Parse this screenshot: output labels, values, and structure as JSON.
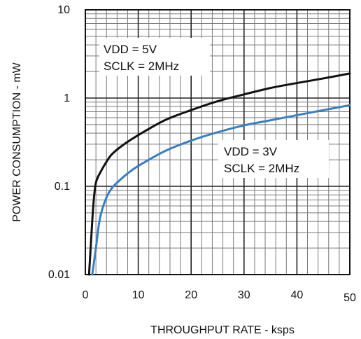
{
  "chart_data": {
    "type": "line",
    "xlabel": "THROUGHPUT RATE - ksps",
    "ylabel": "POWER CONSUMPTION - mW",
    "xlim": [
      0,
      50
    ],
    "ylim": [
      0.01,
      10
    ],
    "y_scale": "log",
    "grid": true,
    "x_ticks": [
      {
        "value": 0,
        "label": "0"
      },
      {
        "value": 10,
        "label": "10"
      },
      {
        "value": 20,
        "label": "20"
      },
      {
        "value": 30,
        "label": "30"
      },
      {
        "value": 40,
        "label": "40"
      },
      {
        "value": 50,
        "label": "50"
      }
    ],
    "y_ticks": [
      {
        "value": 10,
        "label": "10"
      },
      {
        "value": 1,
        "label": "1"
      },
      {
        "value": 0.1,
        "label": "0.1"
      },
      {
        "value": 0.01,
        "label": "0.01"
      }
    ],
    "series": [
      {
        "color": "#111111",
        "points": [
          [
            0.7,
            0.01
          ],
          [
            1.0,
            0.02
          ],
          [
            1.5,
            0.06
          ],
          [
            2.0,
            0.11
          ],
          [
            3.0,
            0.15
          ],
          [
            4.0,
            0.19
          ],
          [
            5.0,
            0.23
          ],
          [
            7.0,
            0.29
          ],
          [
            10.0,
            0.38
          ],
          [
            15.0,
            0.56
          ],
          [
            20.0,
            0.73
          ],
          [
            25.0,
            0.92
          ],
          [
            30.0,
            1.1
          ],
          [
            35.0,
            1.3
          ],
          [
            40.0,
            1.48
          ],
          [
            45.0,
            1.67
          ],
          [
            50.0,
            1.9
          ]
        ]
      },
      {
        "color": "#3a7fc1",
        "points": [
          [
            1.3,
            0.01
          ],
          [
            2.0,
            0.02
          ],
          [
            2.5,
            0.035
          ],
          [
            3.0,
            0.05
          ],
          [
            4.0,
            0.075
          ],
          [
            5.0,
            0.095
          ],
          [
            6.0,
            0.11
          ],
          [
            8.0,
            0.14
          ],
          [
            10.0,
            0.17
          ],
          [
            15.0,
            0.25
          ],
          [
            20.0,
            0.33
          ],
          [
            25.0,
            0.41
          ],
          [
            30.0,
            0.49
          ],
          [
            35.0,
            0.56
          ],
          [
            40.0,
            0.64
          ],
          [
            45.0,
            0.73
          ],
          [
            50.0,
            0.83
          ]
        ]
      }
    ],
    "annotations": [
      {
        "lines": [
          "VDD = 5V",
          "SCLK = 2MHz"
        ]
      },
      {
        "lines": [
          "VDD = 3V",
          "SCLK = 2MHz"
        ]
      }
    ]
  }
}
